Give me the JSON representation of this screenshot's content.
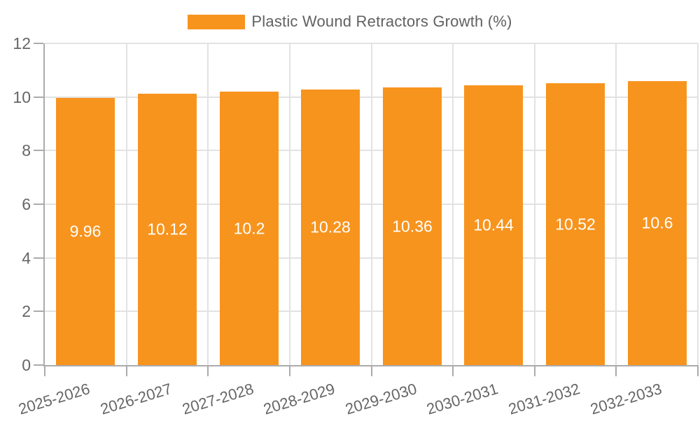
{
  "legend": {
    "label": "Plastic Wound Retractors Growth (%)",
    "swatch_color": "#F7941E"
  },
  "chart_data": {
    "type": "bar",
    "title": "Plastic Wound Retractors Growth (%)",
    "categories": [
      "2025-2026",
      "2026-2027",
      "2027-2028",
      "2028-2029",
      "2029-2030",
      "2030-2031",
      "2031-2032",
      "2032-2033"
    ],
    "values": [
      9.96,
      10.12,
      10.2,
      10.28,
      10.36,
      10.44,
      10.52,
      10.6
    ],
    "value_labels": [
      "9.96",
      "10.12",
      "10.2",
      "10.28",
      "10.36",
      "10.44",
      "10.52",
      "10.6"
    ],
    "xlabel": "",
    "ylabel": "",
    "ylim": [
      0,
      12
    ],
    "yticks": [
      0,
      2,
      4,
      6,
      8,
      10,
      12
    ],
    "grid": true,
    "legend_position": "top-center",
    "bar_color": "#F7941E",
    "value_label_color": "#ffffff",
    "axis_color": "#ababab",
    "grid_color": "#e2e2e2",
    "tick_label_color": "#666666"
  }
}
